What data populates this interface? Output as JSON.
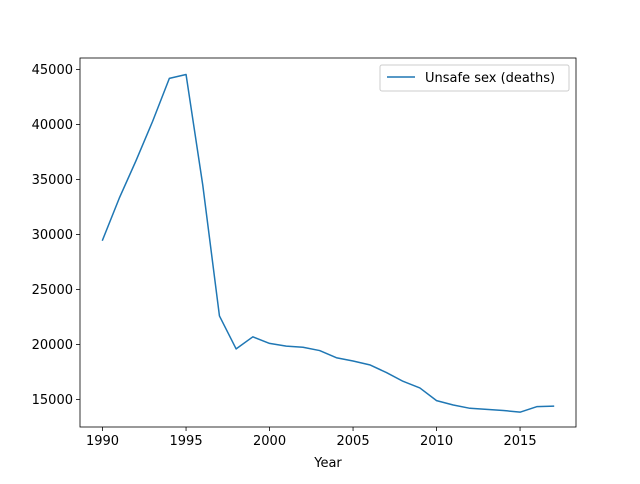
{
  "chart_data": {
    "type": "line",
    "title": "",
    "xlabel": "Year",
    "ylabel": "",
    "xlim": [
      1988.65,
      2018.35
    ],
    "ylim": [
      12500,
      46050
    ],
    "xticks": [
      1990,
      1995,
      2000,
      2005,
      2010,
      2015
    ],
    "yticks": [
      15000,
      20000,
      25000,
      30000,
      35000,
      40000,
      45000
    ],
    "grid": false,
    "legend_position": "top-right",
    "series": [
      {
        "name": "Unsafe sex (deaths)",
        "color": "#1f77b4",
        "x": [
          1990,
          1991,
          1992,
          1993,
          1994,
          1995,
          1996,
          1997,
          1998,
          1999,
          2000,
          2001,
          2002,
          2003,
          2004,
          2005,
          2006,
          2007,
          2008,
          2009,
          2010,
          2011,
          2012,
          2013,
          2014,
          2015,
          2016,
          2017
        ],
        "y": [
          29500,
          33300,
          36700,
          40300,
          44200,
          44550,
          34500,
          22600,
          19600,
          20700,
          20100,
          19850,
          19750,
          19450,
          18800,
          18500,
          18150,
          17450,
          16650,
          16050,
          14900,
          14500,
          14200,
          14100,
          14000,
          13850,
          14350,
          14400
        ]
      }
    ]
  }
}
